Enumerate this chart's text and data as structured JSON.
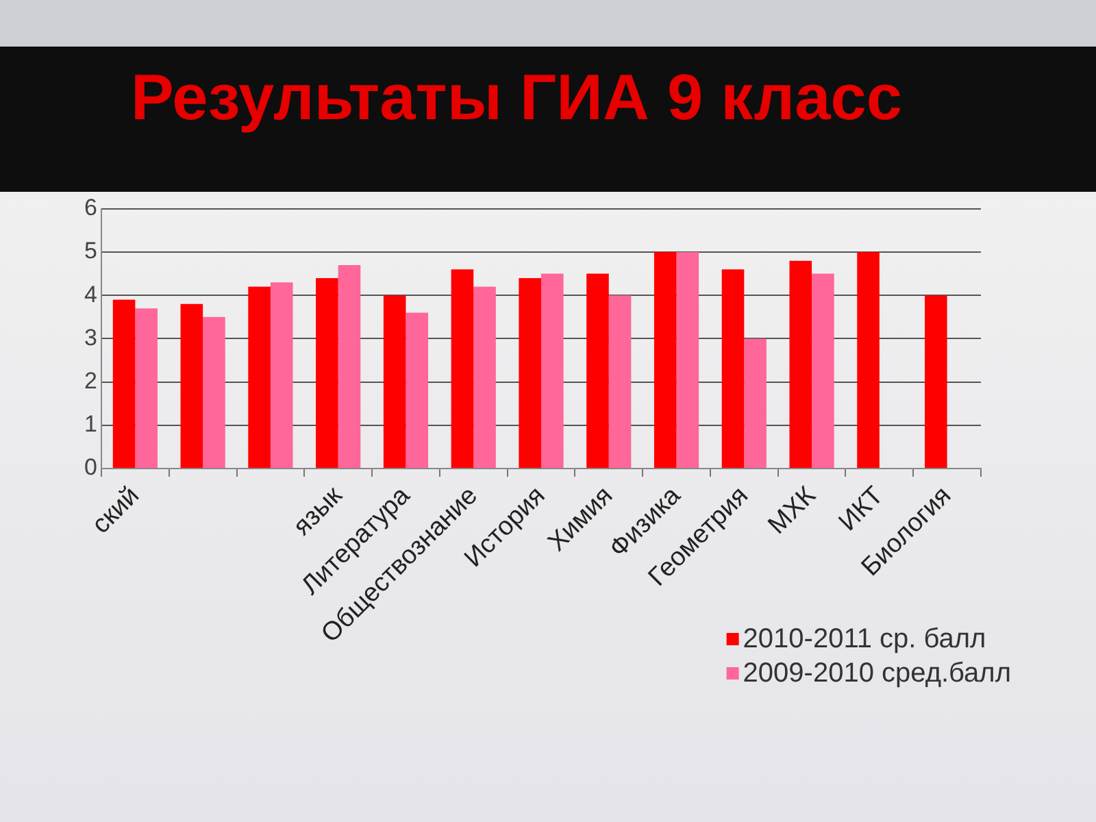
{
  "chart_data": {
    "type": "bar",
    "title": "Результаты ГИА 9 класс",
    "categories": [
      "ский",
      null,
      null,
      "язык",
      "Литература",
      "Обществознание",
      "История",
      "Химия",
      "Физика",
      "Геометрия",
      "МХК",
      "ИКТ",
      "Биология"
    ],
    "series": [
      {
        "name": "2010-2011 ср. балл",
        "color": "#ff0000",
        "values": [
          3.9,
          3.8,
          4.2,
          4.4,
          4.0,
          4.6,
          4.4,
          4.5,
          5.0,
          4.6,
          4.8,
          5.0,
          4.0
        ]
      },
      {
        "name": "2009-2010 сред.балл",
        "color": "#ff6699",
        "values": [
          3.7,
          3.5,
          4.3,
          4.7,
          3.6,
          4.2,
          4.5,
          4.0,
          5.0,
          3.0,
          4.5,
          null,
          null
        ]
      }
    ],
    "ylim": [
      0,
      6
    ],
    "yticks": [
      0,
      1,
      2,
      3,
      4,
      5,
      6
    ],
    "grid": "y",
    "legend": "bottom right"
  }
}
